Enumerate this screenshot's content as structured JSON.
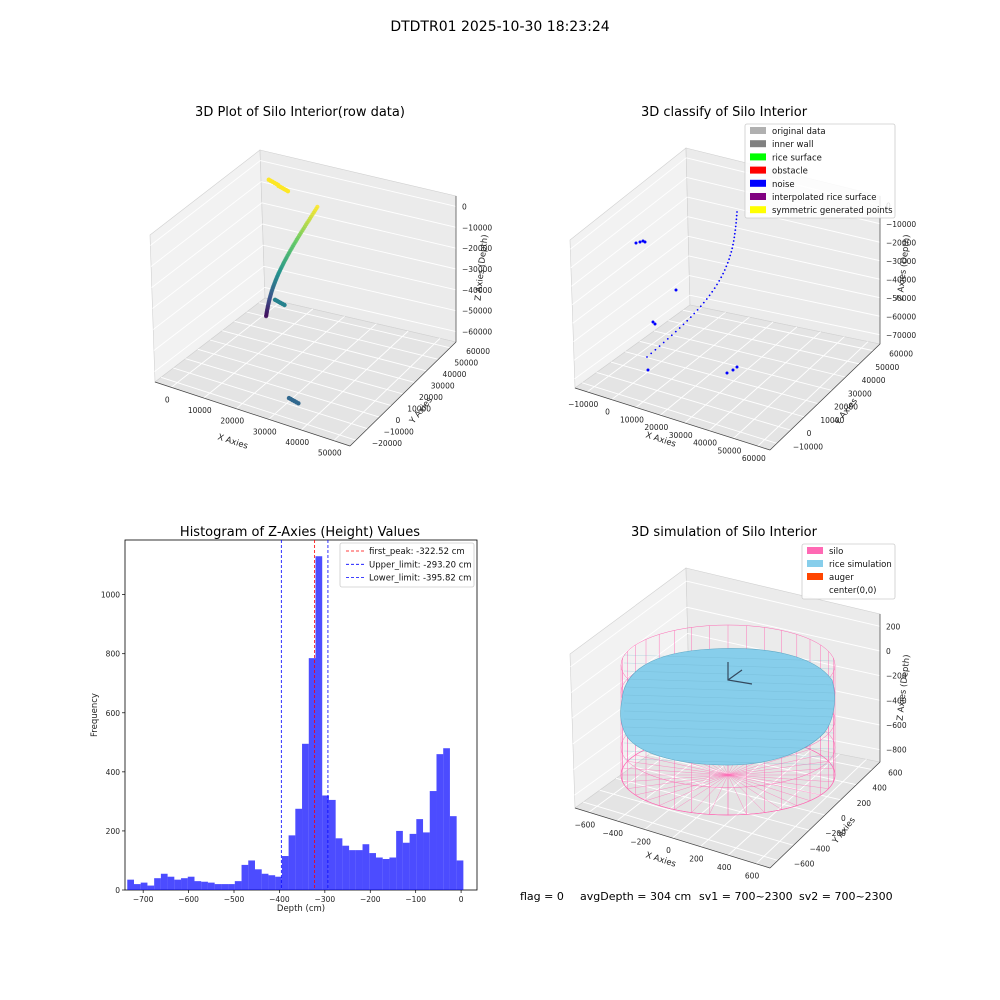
{
  "figure": {
    "suptitle": "DTDTR01 2025-10-30 18:23:24",
    "footer": {
      "flag": "flag = 0",
      "avg_depth": "avgDepth = 304 cm",
      "sv1": "sv1 = 700~2300",
      "sv2": "sv2 = 700~2300"
    }
  },
  "chart_data": [
    {
      "type": "scatter",
      "projection": "3d",
      "title": "3D Plot of Silo Interior(row data)",
      "xlabel": "X Axies",
      "ylabel": "Y Axies",
      "zlabel": "Z Axies (Depth)",
      "x_ticks": [
        "0",
        "10000",
        "20000",
        "30000",
        "40000",
        "50000"
      ],
      "y_ticks": [
        "−20000",
        "−10000",
        "0",
        "10000",
        "20000",
        "30000",
        "40000",
        "50000",
        "60000"
      ],
      "z_ticks": [
        "0",
        "−10000",
        "−20000",
        "−30000",
        "−40000",
        "−50000",
        "−60000"
      ],
      "xlim": [
        -8000,
        52000
      ],
      "ylim": [
        -22000,
        62000
      ],
      "zlim": [
        -68000,
        3000
      ],
      "color_by": "depth",
      "clusters": [
        {
          "x": -4000,
          "y": 55000,
          "z": -5000,
          "color": "#fde725"
        },
        {
          "x": 1000,
          "y": 50000,
          "z": -3000,
          "color": "#fde725"
        },
        {
          "x": 30000,
          "y": -14000,
          "z": -60000,
          "color": "#31688e"
        },
        {
          "x": 8000,
          "y": 30000,
          "z": -45000,
          "color": "#26828e"
        }
      ],
      "arc": {
        "from": [
          17000,
          40000,
          0
        ],
        "to": [
          2000,
          38000,
          -60000
        ]
      }
    },
    {
      "type": "scatter",
      "projection": "3d",
      "title": "3D classify of Silo Interior",
      "xlabel": "X Axies",
      "ylabel": "Y Axies",
      "zlabel": "Z Axies (Depth)",
      "x_ticks": [
        "−10000",
        "0",
        "10000",
        "20000",
        "30000",
        "40000",
        "50000",
        "60000"
      ],
      "y_ticks": [
        "−10000",
        "0",
        "10000",
        "20000",
        "30000",
        "40000",
        "50000",
        "60000"
      ],
      "z_ticks": [
        "0",
        "−10000",
        "−20000",
        "−30000",
        "−40000",
        "−50000",
        "−60000",
        "−70000"
      ],
      "legend": [
        {
          "label": "original data",
          "color": "#b0b0b0"
        },
        {
          "label": "inner wall",
          "color": "#808080"
        },
        {
          "label": "rice surface",
          "color": "#00ff00"
        },
        {
          "label": "obstacle",
          "color": "#ff0000"
        },
        {
          "label": "noise",
          "color": "#0000ff"
        },
        {
          "label": "interpolated rice surface",
          "color": "#800080"
        },
        {
          "label": "symmetric generated points",
          "color": "#ffff00"
        }
      ],
      "legend_loc": "upper right"
    },
    {
      "type": "bar",
      "title": "Histogram of Z-Axies (Height) Values",
      "xlabel": "Depth (cm)",
      "ylabel": "Frequency",
      "xlim": [
        -740,
        35
      ],
      "ylim": [
        0,
        1185
      ],
      "x_ticks": [
        -700,
        -600,
        -500,
        -400,
        -300,
        -200,
        -100,
        0
      ],
      "y_ticks": [
        0,
        200,
        400,
        600,
        800,
        1000
      ],
      "bin_width": 14.8,
      "bin_start": -735,
      "bar_color": "#0000ff",
      "values": [
        35,
        20,
        25,
        15,
        40,
        55,
        45,
        35,
        40,
        45,
        30,
        28,
        25,
        20,
        20,
        20,
        30,
        85,
        100,
        70,
        55,
        50,
        45,
        115,
        185,
        275,
        495,
        785,
        1130,
        320,
        305,
        175,
        150,
        135,
        135,
        155,
        125,
        110,
        105,
        110,
        200,
        160,
        190,
        240,
        195,
        335,
        460,
        480,
        250,
        100
      ],
      "vlines": [
        {
          "label": "first_peak: -322.52 cm",
          "x": -322.52,
          "color": "#ff0000"
        },
        {
          "label": "Upper_limit: -293.20 cm",
          "x": -293.2,
          "color": "#0000ff"
        },
        {
          "label": "Lower_limit: -395.82 cm",
          "x": -395.82,
          "color": "#0000ff"
        }
      ],
      "legend_loc": "upper right"
    },
    {
      "type": "surface",
      "projection": "3d",
      "title": "3D simulation of Silo Interior",
      "xlabel": "X Axies",
      "ylabel": "Y Axies",
      "zlabel": "Z Axies (Depth)",
      "x_ticks": [
        "−600",
        "−400",
        "−200",
        "0",
        "200",
        "400",
        "600"
      ],
      "y_ticks": [
        "−600",
        "−400",
        "−200",
        "0",
        "200",
        "400",
        "600"
      ],
      "z_ticks": [
        "200",
        "0",
        "−200",
        "−400",
        "−600",
        "−800"
      ],
      "legend": [
        {
          "label": "silo",
          "color": "#ff69b4"
        },
        {
          "label": "rice simulation",
          "color": "#87ceeb"
        },
        {
          "label": "auger",
          "color": "#ff4500"
        },
        {
          "label": "center(0,0)",
          "color": ""
        }
      ],
      "legend_loc": "upper right"
    }
  ]
}
